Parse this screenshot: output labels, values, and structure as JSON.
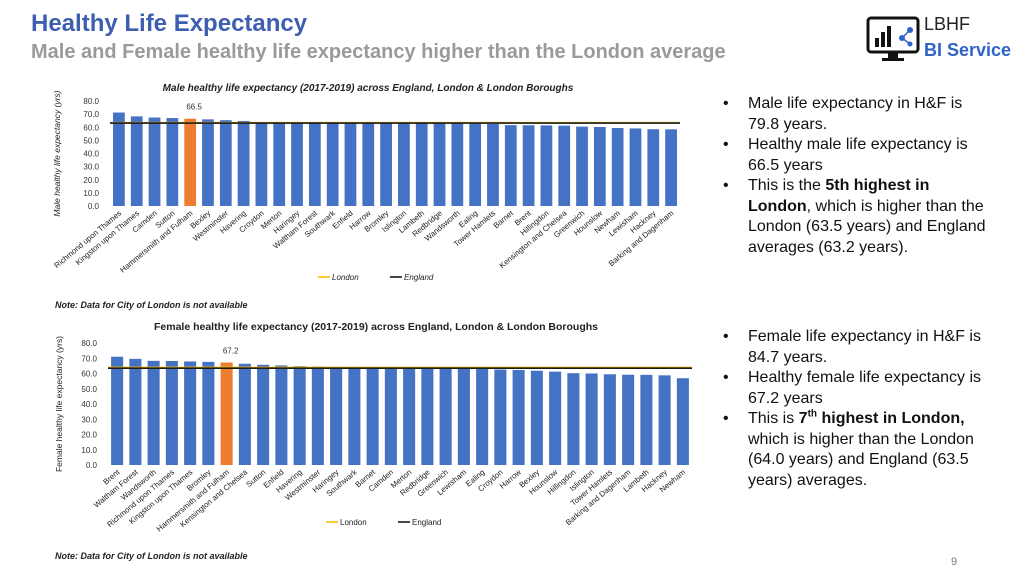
{
  "header": {
    "title": "Healthy Life Expectancy",
    "subtitle": "Male and Female healthy life expectancy higher than the London average"
  },
  "logo": {
    "line1": "LBHF",
    "line2": "BI Service",
    "icon": "monitor-chart-icon"
  },
  "colors": {
    "bar": "#4472c4",
    "highlight": "#ed7d31",
    "london": "#ffc000",
    "england": "#1a1a1a",
    "title": "#3e5fb0"
  },
  "male_text": {
    "b1": "Male life expectancy in H&F is 79.8 years.",
    "b2": "Healthy male life expectancy is 66.5 years",
    "b3_pre": "This is the ",
    "b3_bold": "5th highest in London",
    "b3_post": ", which is higher than the London (63.5 years) and England averages (63.2 years)."
  },
  "female_text": {
    "b1": "Female life expectancy in H&F is 84.7 years.",
    "b2": "Healthy female life expectancy is 67.2 years",
    "b3_pre": "This is ",
    "b3_bold_num": "7",
    "b3_bold_sup": "th",
    "b3_bold_rest": " highest in London,",
    "b3_post": " which is higher than the London (64.0 years) and England (63.5 years) averages."
  },
  "notes": {
    "male": "Note: Data for City of London is not available",
    "female": "Note: Data for City of London is not available"
  },
  "page_number": "9",
  "chart_data": [
    {
      "type": "bar",
      "title": "Male healthy life expectancy (2017-2019) across England, London & London Boroughs",
      "ylabel": "Male healthy life expectancy (yrs)",
      "ylim": [
        0,
        80
      ],
      "yticks": [
        "0.0",
        "10.0",
        "20.0",
        "30.0",
        "40.0",
        "50.0",
        "60.0",
        "70.0",
        "80.0"
      ],
      "categories": [
        "Richmond upon Thames",
        "Kingston upon Thames",
        "Camden",
        "Sutton",
        "Hammersmith and Fulham",
        "Bexley",
        "Westminster",
        "Havering",
        "Croydon",
        "Merton",
        "Haringey",
        "Waltham Forest",
        "Southwark",
        "Enfield",
        "Harrow",
        "Bromley",
        "Islington",
        "Lambeth",
        "Redbridge",
        "Wandsworth",
        "Ealing",
        "Tower Hamlets",
        "Barnet",
        "Brent",
        "Hillingdon",
        "Kensington and Chelsea",
        "Greenwich",
        "Hounslow",
        "Newham",
        "Lewisham",
        "Hackney",
        "Barking and Dagenham"
      ],
      "values": [
        71.2,
        68.3,
        67.4,
        67.0,
        66.5,
        66.0,
        65.4,
        64.8,
        64.0,
        63.8,
        63.6,
        63.4,
        63.3,
        63.2,
        63.2,
        63.1,
        63.0,
        63.0,
        62.9,
        62.8,
        62.7,
        62.5,
        61.6,
        61.5,
        61.4,
        61.2,
        60.5,
        60.2,
        59.4,
        59.1,
        58.5,
        58.4
      ],
      "highlight_index": 4,
      "highlight_label": "66.5",
      "london_line": 63.5,
      "england_line": 63.2,
      "legend": [
        "London",
        "England"
      ]
    },
    {
      "type": "bar",
      "title": "Female healthy life expectancy (2017-2019) across England, London & London Boroughs",
      "ylabel": "Female healthy life expectancy (yrs)",
      "ylim": [
        0,
        80
      ],
      "yticks": [
        "0.0",
        "10.0",
        "20.0",
        "30.0",
        "40.0",
        "50.0",
        "60.0",
        "70.0",
        "80.0"
      ],
      "categories": [
        "Brent",
        "Waltham Forest",
        "Wandsworth",
        "Richmond upon Thames",
        "Kingston upon Thames",
        "Bromley",
        "Hammersmith and Fulham",
        "Kensington and Chelsea",
        "Sutton",
        "Enfield",
        "Havering",
        "Westminster",
        "Haringey",
        "Southwark",
        "Barnet",
        "Camden",
        "Merton",
        "Redbridge",
        "Greenwich",
        "Lewisham",
        "Ealing",
        "Croydon",
        "Harrow",
        "Bexley",
        "Hounslow",
        "Hillingdon",
        "Islington",
        "Tower Hamlets",
        "Barking and Dagenham",
        "Lambeth",
        "Hackney",
        "Newham"
      ],
      "values": [
        71.0,
        69.6,
        68.3,
        68.2,
        67.9,
        67.6,
        67.2,
        66.4,
        65.7,
        65.3,
        64.8,
        64.6,
        64.4,
        64.3,
        64.2,
        64.1,
        64.0,
        63.9,
        63.8,
        63.7,
        63.6,
        62.6,
        62.3,
        61.8,
        61.2,
        60.2,
        60.0,
        59.5,
        59.2,
        59.1,
        58.8,
        56.9
      ],
      "highlight_index": 6,
      "highlight_label": "67.2",
      "london_line": 64.0,
      "england_line": 63.5,
      "legend": [
        "London",
        "England"
      ]
    }
  ]
}
